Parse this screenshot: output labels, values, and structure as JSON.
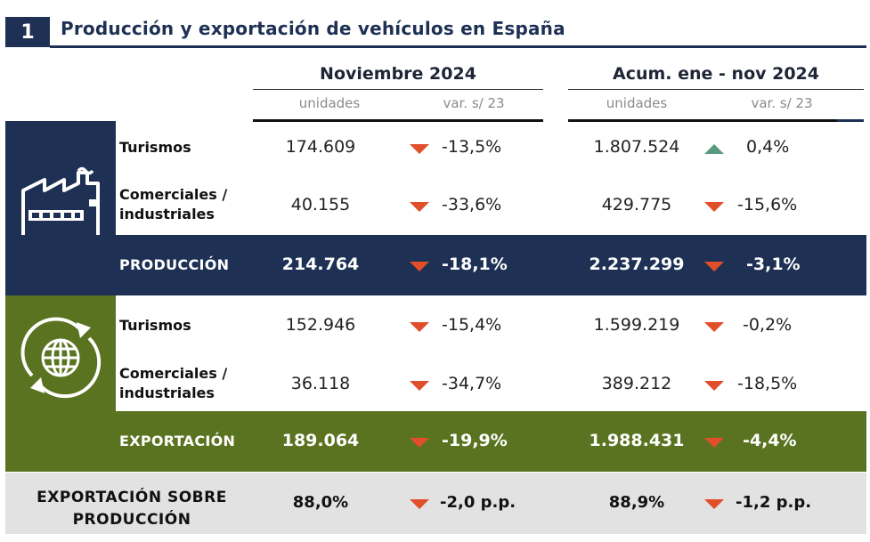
{
  "title": {
    "number": "1",
    "text": "Producción y exportación de vehículos en España"
  },
  "columns": {
    "group1": "Noviembre 2024",
    "group2": "Acum. ene - nov 2024",
    "units": "unidades",
    "var": "var. s/ 23"
  },
  "production": {
    "icon": "factory-icon",
    "color": "#1e3154",
    "rows": [
      {
        "label": "Turismos",
        "nov": "174.609",
        "nov_var": "-13,5%",
        "nov_dir": "down",
        "acc": "1.807.524",
        "acc_var": "0,4%",
        "acc_dir": "up"
      },
      {
        "label_1": "Comerciales /",
        "label_2": "industriales",
        "nov": "40.155",
        "nov_var": "-33,6%",
        "nov_dir": "down",
        "acc": "429.775",
        "acc_var": "-15,6%",
        "acc_dir": "down"
      }
    ],
    "total": {
      "label": "PRODUCCIÓN",
      "nov": "214.764",
      "nov_var": "-18,1%",
      "acc": "2.237.299",
      "acc_var": "-3,1%"
    }
  },
  "export": {
    "icon": "globe-export-icon",
    "color": "#5a7320",
    "rows": [
      {
        "label": "Turismos",
        "nov": "152.946",
        "nov_var": "-15,4%",
        "nov_dir": "down",
        "acc": "1.599.219",
        "acc_var": "-0,2%",
        "acc_dir": "down"
      },
      {
        "label_1": "Comerciales /",
        "label_2": "industriales",
        "nov": "36.118",
        "nov_var": "-34,7%",
        "nov_dir": "down",
        "acc": "389.212",
        "acc_var": "-18,5%",
        "acc_dir": "down"
      }
    ],
    "total": {
      "label": "EXPORTACIÓN",
      "nov": "189.064",
      "nov_var": "-19,9%",
      "acc": "1.988.431",
      "acc_var": "-4,4%"
    }
  },
  "ratio": {
    "label_1": "EXPORTACIÓN SOBRE",
    "label_2": "PRODUCCIÓN",
    "nov": "88,0%",
    "nov_var": "-2,0 p.p.",
    "acc": "88,9%",
    "acc_var": "-1,2 p.p."
  },
  "colors": {
    "down_arrow": "#e04e2a",
    "up_arrow": "#5a9a80"
  }
}
